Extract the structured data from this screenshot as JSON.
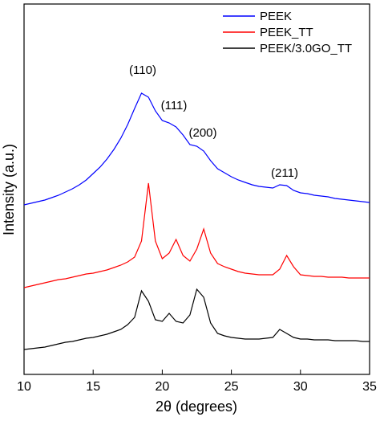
{
  "chart_data": {
    "type": "line",
    "xlabel": "2θ (degrees)",
    "ylabel": "Intensity (a.u.)",
    "x": [
      10,
      10.5,
      11,
      11.5,
      12,
      12.5,
      13,
      13.5,
      14,
      14.5,
      15,
      15.5,
      16,
      16.5,
      17,
      17.5,
      18,
      18.5,
      19,
      19.5,
      20,
      20.5,
      21,
      21.5,
      22,
      22.5,
      23,
      23.5,
      24,
      24.5,
      25,
      25.5,
      26,
      26.5,
      27,
      27.5,
      28,
      28.5,
      29,
      29.5,
      30,
      30.5,
      31,
      31.5,
      32,
      32.5,
      33,
      33.5,
      34,
      34.5,
      35
    ],
    "series": [
      {
        "name": "PEEK",
        "color": "#0000ff",
        "values": [
          211,
          213,
          215,
          217,
          220,
          223,
          227,
          231,
          236,
          242,
          250,
          258,
          268,
          280,
          294,
          311,
          331,
          350,
          345,
          328,
          316,
          313,
          308,
          298,
          286,
          284,
          278,
          266,
          256,
          251,
          246,
          242,
          239,
          236,
          234,
          233,
          232,
          236,
          235,
          229,
          226,
          225,
          223,
          222,
          221,
          219,
          218,
          217,
          216,
          215,
          214
        ]
      },
      {
        "name": "PEEK_TT",
        "color": "#ff0000",
        "values": [
          108,
          110,
          112,
          114,
          116,
          118,
          119,
          121,
          123,
          125,
          126,
          128,
          130,
          133,
          136,
          140,
          146,
          166,
          238,
          166,
          144,
          151,
          168,
          148,
          141,
          156,
          181,
          151,
          138,
          134,
          131,
          128,
          126,
          125,
          124,
          124,
          124,
          131,
          148,
          134,
          124,
          123,
          122,
          122,
          121,
          121,
          121,
          120,
          120,
          120,
          120
        ]
      },
      {
        "name": "PEEK/3.0GO_TT",
        "color": "#000000",
        "values": [
          31,
          32,
          33,
          34,
          36,
          38,
          40,
          41,
          43,
          45,
          46,
          48,
          50,
          53,
          56,
          62,
          71,
          104,
          91,
          68,
          66,
          76,
          66,
          64,
          74,
          106,
          96,
          64,
          51,
          48,
          46,
          45,
          44,
          44,
          44,
          45,
          46,
          56,
          51,
          46,
          44,
          44,
          43,
          43,
          43,
          42,
          42,
          42,
          42,
          41,
          41
        ]
      }
    ],
    "annotations": [
      "(110)",
      "(111)",
      "(200)",
      "(211)"
    ],
    "xlim": [
      10,
      35
    ],
    "xticks": [
      10,
      15,
      20,
      25,
      30,
      35
    ],
    "ylim": [
      0,
      461
    ],
    "legend": "upper right"
  }
}
